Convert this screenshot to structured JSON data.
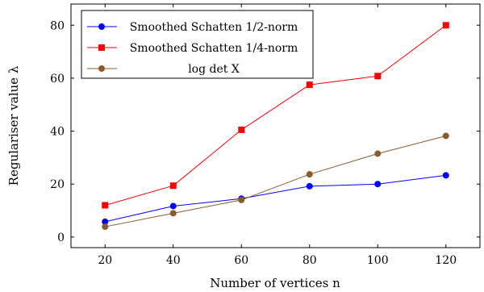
{
  "chart_data": {
    "type": "line",
    "x": [
      20,
      40,
      60,
      80,
      100,
      120
    ],
    "xlim": [
      10,
      130
    ],
    "ylim": [
      -4,
      88
    ],
    "xticks": [
      20,
      40,
      60,
      80,
      100,
      120
    ],
    "yticks": [
      0,
      20,
      40,
      60,
      80
    ],
    "xlabel": "Number of vertices n",
    "ylabel": "Regulariser value λ",
    "grid": false,
    "legend_position": "top-left",
    "series": [
      {
        "name": "Smoothed Schatten 1/2-norm",
        "color": "#0000ff",
        "marker": "circle",
        "values": [
          5.8,
          11.7,
          14.5,
          19.2,
          20.0,
          23.3
        ]
      },
      {
        "name": "Smoothed Schatten 1/4-norm",
        "color": "#ff0000",
        "marker": "square",
        "values": [
          12.0,
          19.4,
          40.5,
          57.5,
          60.8,
          80.0
        ]
      },
      {
        "name": "log det X",
        "color": "#8b5a2b",
        "marker": "circle",
        "values": [
          3.9,
          9.0,
          14.0,
          23.7,
          31.5,
          38.2
        ]
      }
    ]
  }
}
